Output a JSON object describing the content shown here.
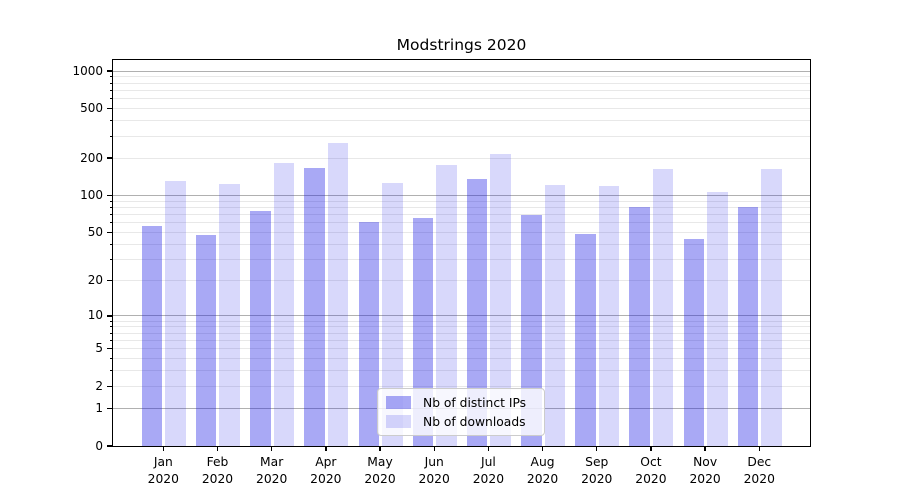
{
  "chart_data": {
    "type": "bar",
    "title": "Modstrings 2020",
    "categories": [
      {
        "month": "Jan",
        "year": "2020"
      },
      {
        "month": "Feb",
        "year": "2020"
      },
      {
        "month": "Mar",
        "year": "2020"
      },
      {
        "month": "Apr",
        "year": "2020"
      },
      {
        "month": "May",
        "year": "2020"
      },
      {
        "month": "Jun",
        "year": "2020"
      },
      {
        "month": "Jul",
        "year": "2020"
      },
      {
        "month": "Aug",
        "year": "2020"
      },
      {
        "month": "Sep",
        "year": "2020"
      },
      {
        "month": "Oct",
        "year": "2020"
      },
      {
        "month": "Nov",
        "year": "2020"
      },
      {
        "month": "Dec",
        "year": "2020"
      }
    ],
    "series": [
      {
        "name": "Nb of distinct IPs",
        "color": "rgba(22,22,229,0.37)",
        "values": [
          57,
          48,
          75,
          166,
          61,
          66,
          136,
          69,
          49,
          80,
          44,
          80
        ]
      },
      {
        "name": "Nb of downloads",
        "color": "rgba(22,22,229,0.17)",
        "values": [
          131,
          124,
          182,
          265,
          125,
          177,
          217,
          122,
          120,
          163,
          106,
          163
        ]
      }
    ],
    "xlabel": "",
    "ylabel": "",
    "y_scale": "log10(value+1)",
    "y_axis_top_value": 1225,
    "y_tick_labels": [
      "1000",
      "500",
      "200",
      "100",
      "50",
      "20",
      "10",
      "5",
      "2",
      "1",
      "0"
    ],
    "y_tick_values": [
      1000,
      500,
      200,
      100,
      50,
      20,
      10,
      5,
      2,
      1,
      0
    ],
    "y_major_gridlines": [
      1,
      10,
      100,
      1000
    ],
    "y_minor_gridlines": [
      2,
      3,
      4,
      5,
      6,
      7,
      8,
      9,
      20,
      30,
      40,
      50,
      60,
      70,
      80,
      90,
      200,
      300,
      400,
      500,
      600,
      700,
      800,
      900
    ],
    "grid": true,
    "legend_position": "lower center"
  },
  "colors": {
    "major_grid": "#b0b0b0",
    "minor_grid": "#e8e8e8",
    "spine": "#000000",
    "background": "#ffffff",
    "legend_border": "#cccccc"
  }
}
